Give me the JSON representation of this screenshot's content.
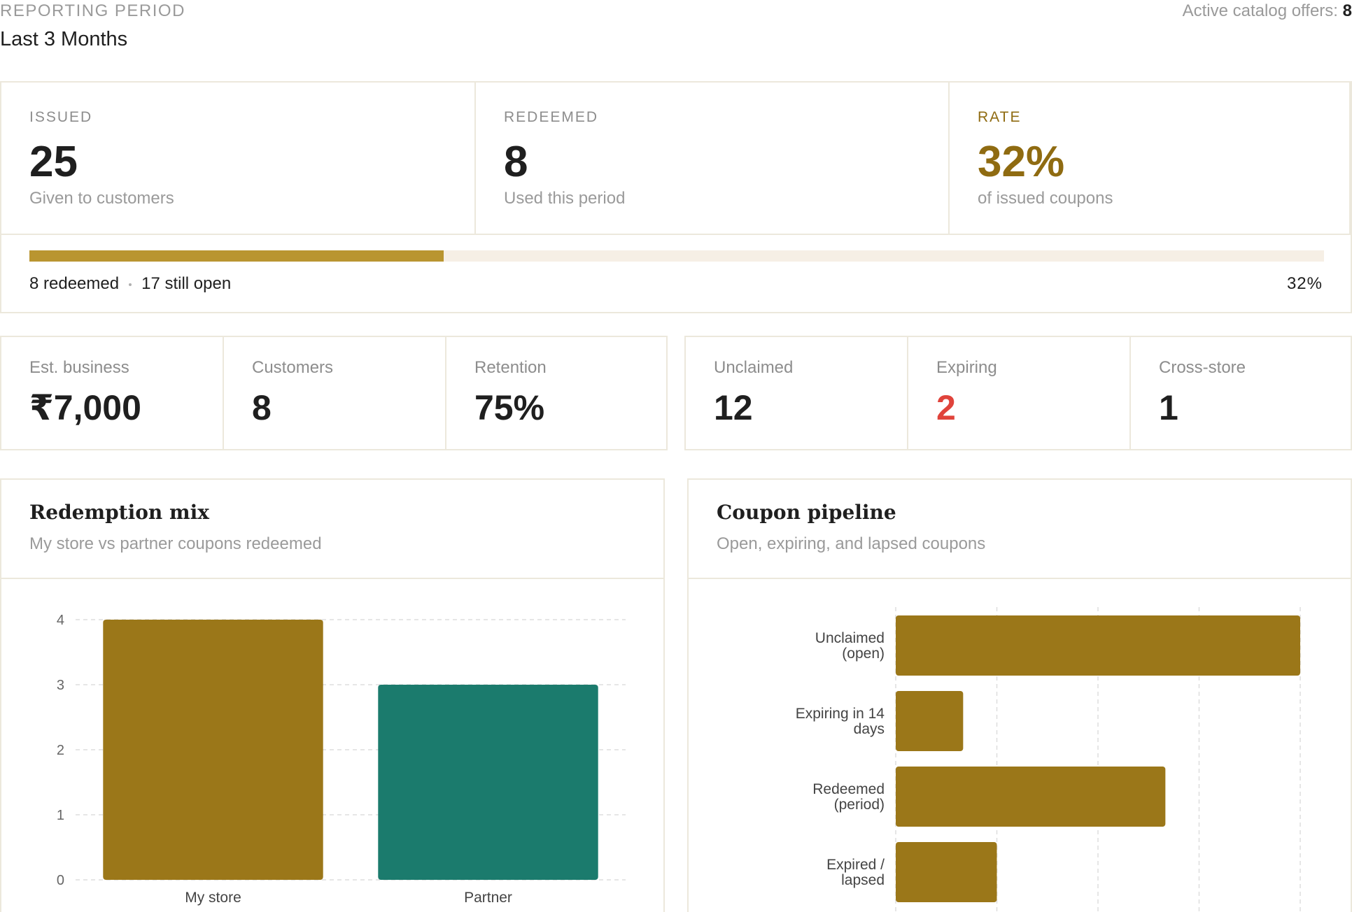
{
  "header": {
    "period_label": "REPORTING PERIOD",
    "period_value": "Last 3 Months",
    "offers_label": "Active catalog offers:",
    "offers_value": "8"
  },
  "summary": {
    "issued": {
      "label": "ISSUED",
      "value": "25",
      "sub": "Given to customers"
    },
    "redeemed": {
      "label": "REDEEMED",
      "value": "8",
      "sub": "Used this period"
    },
    "rate": {
      "label": "RATE",
      "value": "32%",
      "sub": "of issued coupons"
    },
    "progress": {
      "fraction": 0.32,
      "redeemed_text": "8 redeemed",
      "open_text": "17 still open",
      "percent_text": "32%"
    },
    "colors": {
      "accent": "#8f6b11",
      "fill": "#b99530",
      "track": "#f6efe5"
    }
  },
  "metrics_left": [
    {
      "label": "Est. business",
      "value": "₹7,000"
    },
    {
      "label": "Customers",
      "value": "8"
    },
    {
      "label": "Retention",
      "value": "75%"
    }
  ],
  "metrics_right": [
    {
      "label": "Unclaimed",
      "value": "12"
    },
    {
      "label": "Expiring",
      "value": "2"
    },
    {
      "label": "Cross-store",
      "value": "1"
    }
  ],
  "redemption_mix": {
    "title": "Redemption mix",
    "subtitle": "My store vs partner coupons redeemed"
  },
  "coupon_pipeline": {
    "title": "Coupon pipeline",
    "subtitle": "Open, expiring, and lapsed coupons"
  },
  "chart_data": [
    {
      "type": "bar",
      "title": "Redemption mix",
      "categories": [
        "My store",
        "Partner"
      ],
      "values": [
        4,
        3
      ],
      "colors": [
        "#9b7719",
        "#1b7b6d"
      ],
      "yticks": [
        0,
        1,
        2,
        3,
        4
      ],
      "ylim": [
        0,
        4
      ],
      "grid": true
    },
    {
      "type": "bar",
      "orientation": "horizontal",
      "title": "Coupon pipeline",
      "categories": [
        [
          "Unclaimed",
          "(open)"
        ],
        [
          "Expiring in 14",
          "days"
        ],
        [
          "Redeemed",
          "(period)"
        ],
        [
          "Expired /",
          "lapsed"
        ]
      ],
      "values": [
        12,
        2,
        8,
        3
      ],
      "color": "#9b7719",
      "xlim": [
        0,
        12
      ],
      "grid": true
    }
  ]
}
